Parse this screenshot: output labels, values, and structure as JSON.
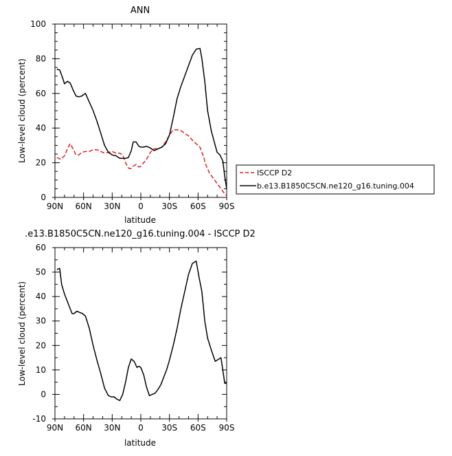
{
  "chart_data": [
    {
      "type": "line",
      "title": "ANN",
      "xlabel": "latitude",
      "ylabel": "Low-level cloud (percent)",
      "xlim": [
        -90,
        90
      ],
      "ylim": [
        0,
        100
      ],
      "x_ticks": [
        {
          "value": -90,
          "label": "90N"
        },
        {
          "value": -60,
          "label": "60N"
        },
        {
          "value": -30,
          "label": "30N"
        },
        {
          "value": 0,
          "label": "0"
        },
        {
          "value": 30,
          "label": "30S"
        },
        {
          "value": 60,
          "label": "60S"
        },
        {
          "value": 90,
          "label": "90S"
        }
      ],
      "y_ticks": [
        0,
        20,
        40,
        60,
        80,
        100
      ],
      "grid": false,
      "legend": "right",
      "series": [
        {
          "name": "ISCCP D2",
          "color": "#e41a1c",
          "dash": "dashed",
          "x": [
            -88,
            -84,
            -80,
            -77,
            -74,
            -71,
            -68,
            -65,
            -62,
            -58,
            -54,
            -50,
            -46,
            -42,
            -38,
            -34,
            -30,
            -26,
            -22,
            -19,
            -16,
            -13,
            -11,
            -8,
            -5,
            -2,
            0,
            3,
            6,
            10,
            14,
            18,
            22,
            26,
            30,
            34,
            38,
            42,
            46,
            50,
            54,
            58,
            62,
            66,
            68,
            72,
            76,
            80,
            84,
            88,
            90
          ],
          "y": [
            23,
            22,
            24,
            28,
            31,
            28,
            24.5,
            24.5,
            26,
            26.5,
            26.5,
            27.5,
            27.5,
            26.5,
            25.5,
            26,
            26.5,
            25.5,
            25.5,
            24.5,
            20,
            17,
            16.5,
            18,
            19,
            17.5,
            18,
            20,
            22,
            26,
            28,
            28,
            29,
            32,
            36,
            39,
            39,
            38.5,
            37,
            35.5,
            33,
            31,
            29,
            23,
            19,
            14,
            11,
            8,
            5,
            2,
            1
          ]
        },
        {
          "name": "b.e13.B1850C5CN.ne120_g16.tuning.004",
          "color": "#000000",
          "dash": "solid",
          "x": [
            -88,
            -85,
            -82,
            -80,
            -77,
            -74,
            -71,
            -68,
            -65,
            -62,
            -58,
            -54,
            -50,
            -46,
            -42,
            -38,
            -34,
            -30,
            -26,
            -22,
            -19,
            -16,
            -13,
            -10,
            -8,
            -5,
            -2,
            0,
            3,
            6,
            10,
            14,
            18,
            22,
            26,
            30,
            34,
            38,
            42,
            46,
            50,
            54,
            58,
            62,
            64,
            67,
            70,
            74,
            78,
            80,
            83,
            86,
            88,
            90
          ],
          "y": [
            74,
            73.5,
            69,
            65.5,
            67,
            66,
            62,
            58.5,
            58,
            58.5,
            60,
            55,
            50,
            44,
            37,
            30,
            26,
            24.5,
            24,
            22.5,
            22.5,
            22.5,
            23,
            27,
            32,
            32,
            29.5,
            29,
            29,
            29.5,
            28.5,
            27,
            28,
            29,
            31,
            36,
            46,
            57,
            64,
            70,
            76,
            82,
            85.5,
            86,
            80,
            67,
            50,
            38,
            30,
            26,
            24.5,
            21,
            12,
            5
          ]
        }
      ]
    },
    {
      "type": "line",
      "title": ".e13.B1850C5CN.ne120_g16.tuning.004 - ISCCP D2",
      "xlabel": "latitude",
      "ylabel": "Low-level cloud (percent)",
      "xlim": [
        -90,
        90
      ],
      "ylim": [
        -10,
        60
      ],
      "x_ticks": [
        {
          "value": -90,
          "label": "90N"
        },
        {
          "value": -60,
          "label": "60N"
        },
        {
          "value": -30,
          "label": "30N"
        },
        {
          "value": 0,
          "label": "0"
        },
        {
          "value": 30,
          "label": "30S"
        },
        {
          "value": 60,
          "label": "60S"
        },
        {
          "value": 90,
          "label": "90S"
        }
      ],
      "y_ticks": [
        -10,
        0,
        10,
        20,
        30,
        40,
        50,
        60
      ],
      "grid": false,
      "series": [
        {
          "color": "#000000",
          "dash": "solid",
          "x": [
            -88,
            -85,
            -83,
            -80,
            -78,
            -75,
            -72,
            -70,
            -67,
            -64,
            -61,
            -58,
            -54,
            -50,
            -46,
            -42,
            -38,
            -34,
            -31,
            -28,
            -25,
            -22,
            -19,
            -16,
            -13,
            -10,
            -7,
            -4,
            -2,
            0,
            3,
            6,
            9,
            12,
            15,
            18,
            21,
            24,
            27,
            30,
            34,
            38,
            42,
            46,
            50,
            54,
            58,
            61,
            64,
            67,
            70,
            74,
            78,
            80,
            84,
            88,
            90
          ],
          "y": [
            51,
            51.5,
            45,
            41,
            39,
            36,
            33,
            33,
            34,
            33.5,
            33,
            32,
            27,
            20,
            14,
            8.5,
            2.5,
            -0.5,
            -1,
            -1,
            -2,
            -2.5,
            0,
            5,
            11,
            14.5,
            13.5,
            11,
            11.5,
            11,
            8,
            3,
            -0.5,
            0,
            0.5,
            2,
            4,
            7,
            10,
            14,
            20,
            27,
            35,
            42,
            49,
            53.5,
            54.5,
            48,
            42,
            30,
            23,
            18,
            13.5,
            14,
            15,
            4.5,
            4.5
          ]
        }
      ]
    }
  ]
}
